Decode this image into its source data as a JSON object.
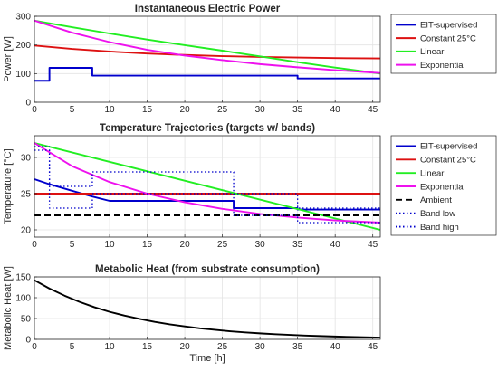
{
  "chart_data": [
    {
      "type": "line",
      "title": "Instantaneous Electric Power",
      "xlabel": "",
      "ylabel": "Power [W]",
      "xlim": [
        0,
        46
      ],
      "ylim": [
        0,
        300
      ],
      "xticks": [
        0,
        5,
        10,
        15,
        20,
        25,
        30,
        35,
        40,
        45
      ],
      "yticks": [
        0,
        100,
        200,
        300
      ],
      "grid": true,
      "legend_position": "outside-right",
      "series": [
        {
          "name": "EIT-supervised",
          "color": "#0000cc",
          "dash": "solid",
          "points": [
            [
              0,
              75
            ],
            [
              2,
              75
            ],
            [
              2,
              120
            ],
            [
              7.7,
              120
            ],
            [
              7.7,
              93
            ],
            [
              35,
              93
            ],
            [
              35,
              83
            ],
            [
              46,
              83
            ]
          ]
        },
        {
          "name": "Constant 25°C",
          "color": "#dd1111",
          "dash": "solid",
          "points": [
            [
              0,
              198
            ],
            [
              5,
              186
            ],
            [
              10,
              177
            ],
            [
              15,
              170
            ],
            [
              20,
              165
            ],
            [
              25,
              161
            ],
            [
              30,
              158
            ],
            [
              35,
              156
            ],
            [
              40,
              154
            ],
            [
              46,
              153
            ]
          ]
        },
        {
          "name": "Linear",
          "color": "#22ee22",
          "dash": "solid",
          "points": [
            [
              0,
              285
            ],
            [
              5,
              262
            ],
            [
              10,
              240
            ],
            [
              15,
              219
            ],
            [
              20,
              199
            ],
            [
              25,
              180
            ],
            [
              30,
              160
            ],
            [
              35,
              140
            ],
            [
              40,
              121
            ],
            [
              46,
              100
            ]
          ]
        },
        {
          "name": "Exponential",
          "color": "#ee11ee",
          "dash": "solid",
          "points": [
            [
              0,
              285
            ],
            [
              5,
              243
            ],
            [
              10,
              210
            ],
            [
              15,
              183
            ],
            [
              20,
              163
            ],
            [
              25,
              147
            ],
            [
              30,
              133
            ],
            [
              35,
              122
            ],
            [
              40,
              112
            ],
            [
              46,
              102
            ]
          ]
        }
      ]
    },
    {
      "type": "line",
      "title": "Temperature Trajectories (targets w/ bands)",
      "xlabel": "",
      "ylabel": "Temperature [°C]",
      "xlim": [
        0,
        46
      ],
      "ylim": [
        19,
        33
      ],
      "xticks": [
        0,
        5,
        10,
        15,
        20,
        25,
        30,
        35,
        40,
        45
      ],
      "yticks": [
        20,
        25,
        30
      ],
      "grid": true,
      "legend_position": "outside-right",
      "series": [
        {
          "name": "EIT-supervised",
          "color": "#0000cc",
          "dash": "solid",
          "points": [
            [
              0,
              27
            ],
            [
              2,
              26.3
            ],
            [
              5,
              25.4
            ],
            [
              7.7,
              24.6
            ],
            [
              10,
              24
            ],
            [
              26.5,
              24
            ],
            [
              26.5,
              23
            ],
            [
              35,
              23
            ],
            [
              35,
              22.8
            ],
            [
              46,
              22.8
            ]
          ]
        },
        {
          "name": "Constant 25°C",
          "color": "#dd1111",
          "dash": "solid",
          "points": [
            [
              0,
              25
            ],
            [
              46,
              25
            ]
          ]
        },
        {
          "name": "Linear",
          "color": "#22ee22",
          "dash": "solid",
          "points": [
            [
              0,
              32
            ],
            [
              46,
              20
            ]
          ]
        },
        {
          "name": "Exponential",
          "color": "#ee11ee",
          "dash": "solid",
          "points": [
            [
              0,
              32
            ],
            [
              5,
              28.8
            ],
            [
              10,
              26.6
            ],
            [
              15,
              25
            ],
            [
              20,
              23.8
            ],
            [
              25,
              22.9
            ],
            [
              30,
              22.2
            ],
            [
              35,
              21.7
            ],
            [
              40,
              21.3
            ],
            [
              46,
              21
            ]
          ]
        },
        {
          "name": "Ambient",
          "color": "#000000",
          "dash": "dashed",
          "points": [
            [
              0,
              22
            ],
            [
              46,
              22
            ]
          ]
        },
        {
          "name": "Band low",
          "color": "#0000cc",
          "dash": "dotted",
          "points": [
            [
              0,
              31
            ],
            [
              2,
              31
            ],
            [
              2,
              23
            ],
            [
              7.7,
              23
            ],
            [
              7.7,
              25
            ],
            [
              26.5,
              25
            ],
            [
              26.5,
              22
            ],
            [
              35,
              22
            ],
            [
              35,
              21
            ],
            [
              46,
              21
            ]
          ]
        },
        {
          "name": "Band high",
          "color": "#0000cc",
          "dash": "dotted",
          "points": [
            [
              0,
              31.5
            ],
            [
              2,
              31.5
            ],
            [
              2,
              26
            ],
            [
              7.7,
              26
            ],
            [
              7.7,
              28
            ],
            [
              26.5,
              28
            ],
            [
              26.5,
              25
            ],
            [
              35,
              25
            ],
            [
              35,
              23
            ],
            [
              46,
              23
            ]
          ]
        }
      ]
    },
    {
      "type": "line",
      "title": "Metabolic Heat (from substrate consumption)",
      "xlabel": "Time [h]",
      "ylabel": "Metabolic Heat [W]",
      "xlim": [
        0,
        46
      ],
      "ylim": [
        0,
        150
      ],
      "xticks": [
        0,
        5,
        10,
        15,
        20,
        25,
        30,
        35,
        40,
        45
      ],
      "yticks": [
        0,
        50,
        100,
        150
      ],
      "grid": true,
      "legend_position": "none",
      "series": [
        {
          "name": "",
          "color": "#000000",
          "dash": "solid",
          "points": [
            [
              0,
              142
            ],
            [
              2,
              122
            ],
            [
              4,
              105
            ],
            [
              6,
              90
            ],
            [
              8,
              77
            ],
            [
              10,
              66
            ],
            [
              12,
              57
            ],
            [
              14,
              49
            ],
            [
              16,
              42
            ],
            [
              18,
              36
            ],
            [
              20,
              31
            ],
            [
              22,
              26.5
            ],
            [
              24,
              23
            ],
            [
              26,
              19.5
            ],
            [
              28,
              16.8
            ],
            [
              30,
              14.4
            ],
            [
              32,
              12.4
            ],
            [
              34,
              10.7
            ],
            [
              36,
              9.2
            ],
            [
              38,
              7.9
            ],
            [
              40,
              6.8
            ],
            [
              42,
              5.8
            ],
            [
              44,
              5
            ],
            [
              46,
              4.3
            ]
          ]
        }
      ]
    }
  ]
}
